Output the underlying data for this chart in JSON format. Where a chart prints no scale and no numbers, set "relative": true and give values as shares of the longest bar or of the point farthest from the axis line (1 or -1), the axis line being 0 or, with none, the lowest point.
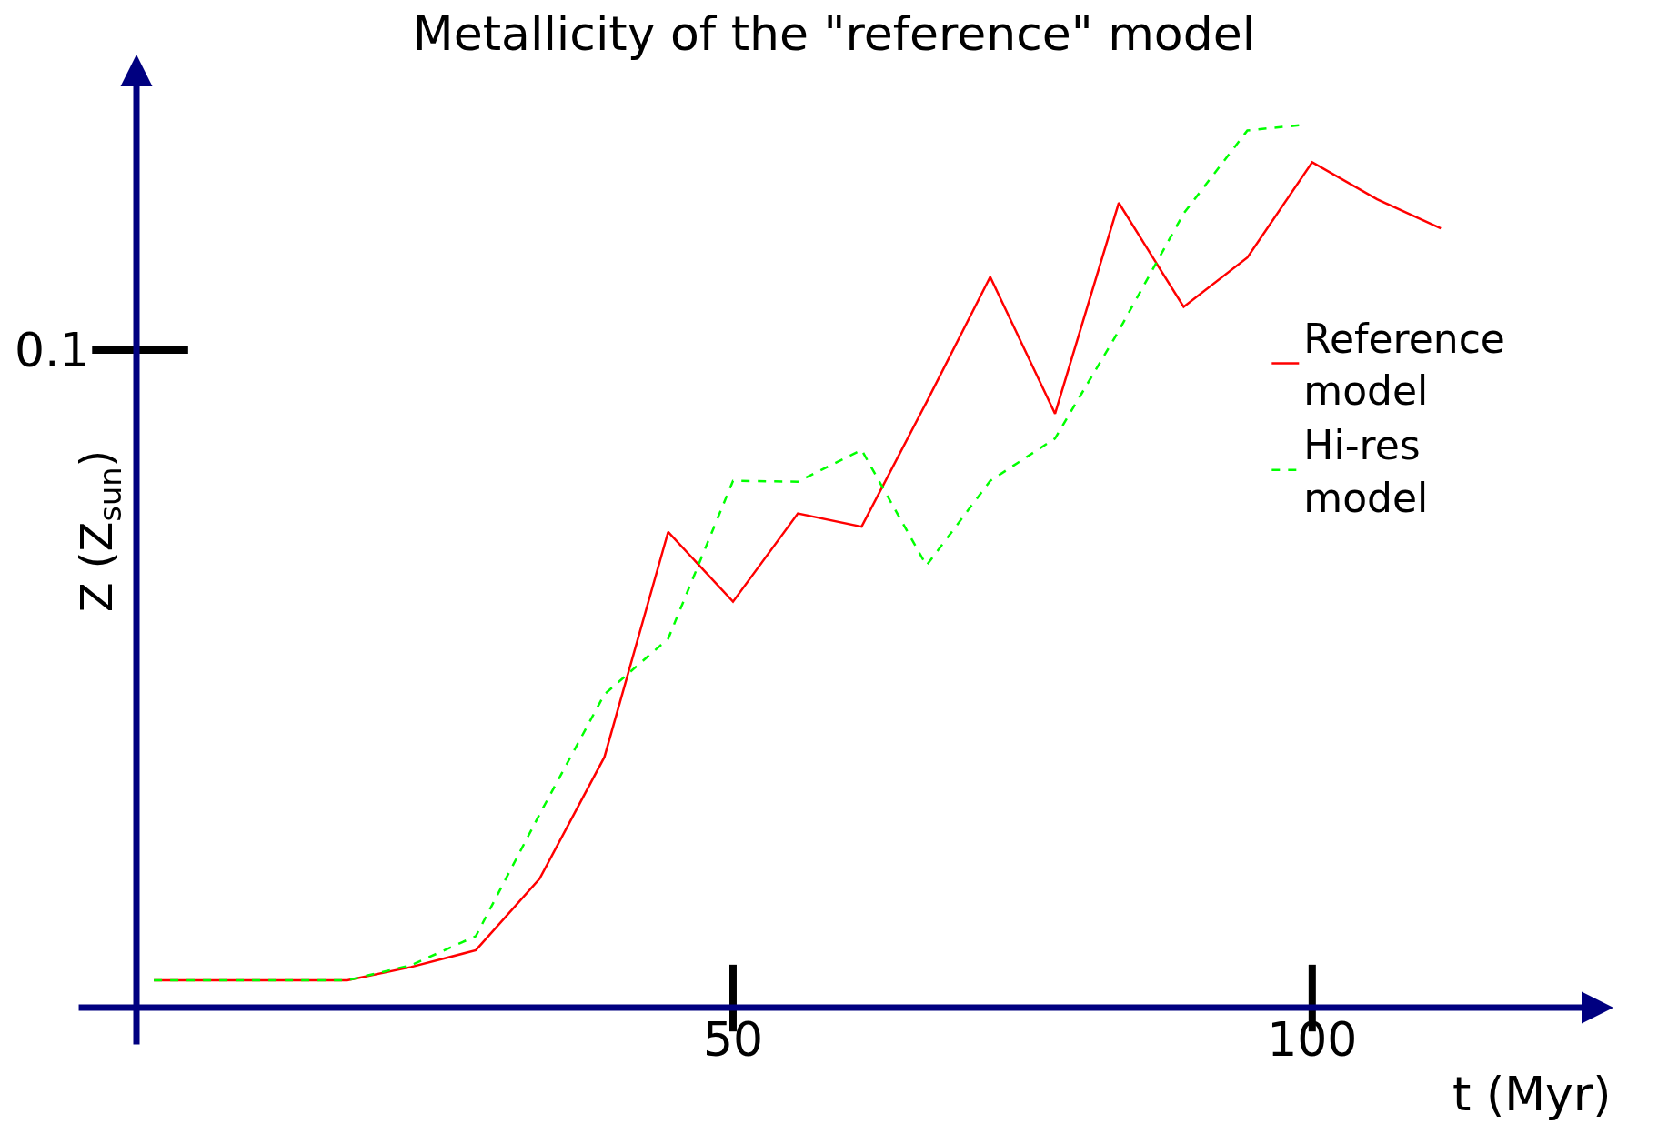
{
  "chart_data": {
    "type": "line",
    "title": "Metallicity of the \"reference\" model",
    "xlabel": "t (Myr)",
    "ylabel": "Z (Z$_{sun}$)",
    "relative": true,
    "xlim": [
      -1.5,
      126
    ],
    "xticks": [
      50,
      100
    ],
    "annotations": [
      "0.1"
    ],
    "grid": false,
    "legend": "right",
    "series": [
      {
        "name": "Reference model",
        "color": "#ff0000",
        "line_style": "solid",
        "x": [
          0,
          5.6,
          11.1,
          16.7,
          22.2,
          27.8,
          33.3,
          38.9,
          44.4,
          50,
          55.6,
          61.1,
          66.7,
          72.2,
          77.8,
          83.3,
          88.9,
          94.4,
          100,
          105.6,
          111.1
        ],
        "values": [
          0.031,
          0.031,
          0.031,
          0.031,
          0.046,
          0.065,
          0.146,
          0.284,
          0.539,
          0.46,
          0.56,
          0.545,
          0.686,
          0.828,
          0.673,
          0.912,
          0.794,
          0.85,
          0.958,
          0.916,
          0.883
        ]
      },
      {
        "name": "Hi-res model",
        "color": "#00ff00",
        "line_style": "dashed",
        "x": [
          0,
          5.6,
          11.1,
          16.7,
          22.2,
          27.8,
          33.3,
          38.9,
          44.4,
          50,
          55.6,
          61.1,
          66.7,
          72.2,
          77.8,
          83.3,
          88.9,
          94.4,
          99
        ],
        "values": [
          0.031,
          0.031,
          0.031,
          0.031,
          0.048,
          0.081,
          0.219,
          0.355,
          0.418,
          0.597,
          0.596,
          0.632,
          0.501,
          0.597,
          0.645,
          0.767,
          0.9,
          0.994,
          1
        ]
      }
    ]
  }
}
